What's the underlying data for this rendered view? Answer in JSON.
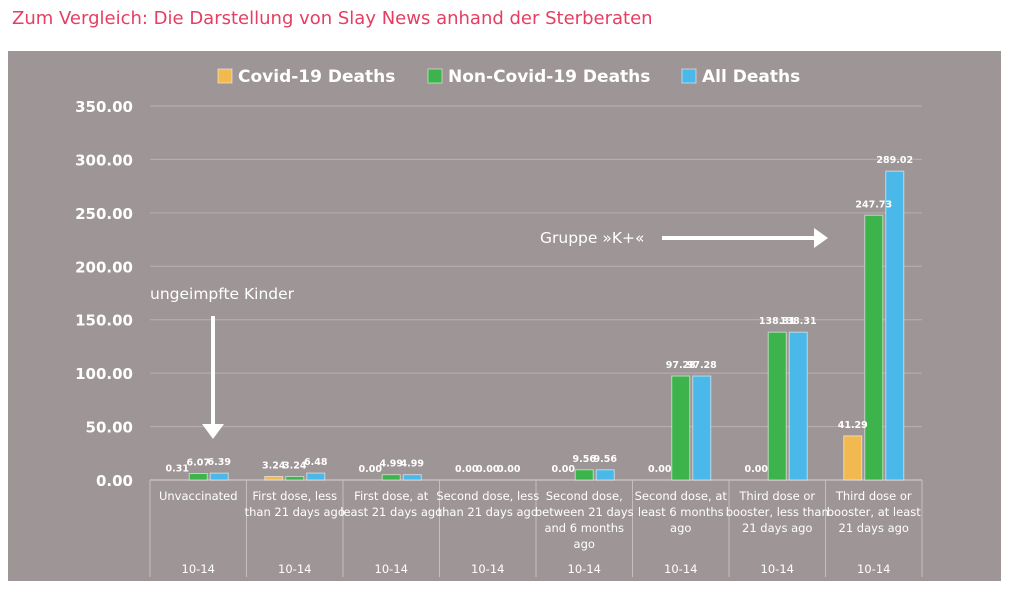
{
  "page": {
    "caption": "Zum Vergleich: Die Darstellung von Slay News anhand der Sterberaten"
  },
  "colors": {
    "caption": "#e63d62",
    "panel_bg": "#9e9696",
    "covid": "#f1b94f",
    "non_covid": "#3cb44b",
    "all": "#4ab8e8",
    "text": "#ffffff"
  },
  "chart_data": {
    "type": "bar",
    "title": "",
    "xlabel": "",
    "ylabel": "",
    "ylim": [
      0,
      350
    ],
    "yticks": [
      "0.00",
      "50.00",
      "100.00",
      "150.00",
      "200.00",
      "250.00",
      "300.00",
      "350.00"
    ],
    "ytick_values": [
      0,
      50,
      100,
      150,
      200,
      250,
      300,
      350
    ],
    "categories": [
      "Unvaccinated",
      "First dose, less than 21 days ago",
      "First dose, at least 21 days ago",
      "Second dose, less than 21 days ago",
      "Second dose, between 21 days and 6 months ago",
      "Second dose, at least 6 months ago",
      "Third dose or booster, less than 21 days ago",
      "Third dose or booster, at least 21 days ago"
    ],
    "category_lines": [
      [
        "Unvaccinated"
      ],
      [
        "First dose, less",
        "than 21 days ago"
      ],
      [
        "First dose, at",
        "least 21 days ago"
      ],
      [
        "Second dose, less",
        "than 21 days ago"
      ],
      [
        "Second dose,",
        "between 21 days",
        "and 6 months",
        "ago"
      ],
      [
        "Second dose, at",
        "least 6 months",
        "ago"
      ],
      [
        "Third dose or",
        "booster, less than",
        "21 days ago"
      ],
      [
        "Third dose or",
        "booster, at least",
        "21 days ago"
      ]
    ],
    "age_group": "10-14",
    "legend_position": "top-center",
    "series": [
      {
        "name": "Covid-19 Deaths",
        "color": "#f1b94f",
        "values": [
          0.31,
          3.24,
          0.0,
          0.0,
          0.0,
          0.0,
          0.0,
          41.29
        ],
        "labels": [
          "0.31",
          "3.24",
          "0.00",
          "0.00",
          "0.00",
          "0.00",
          "0.00",
          "41.29"
        ]
      },
      {
        "name": "Non-Covid-19 Deaths",
        "color": "#3cb44b",
        "values": [
          6.07,
          3.24,
          4.99,
          0.0,
          9.56,
          97.28,
          138.31,
          247.73
        ],
        "labels": [
          "6.07",
          "3.24",
          "4.99",
          "0.00",
          "9.56",
          "97.28",
          "138.31",
          "247.73"
        ]
      },
      {
        "name": "All Deaths",
        "color": "#4ab8e8",
        "values": [
          6.39,
          6.48,
          4.99,
          0.0,
          9.56,
          97.28,
          138.31,
          289.02
        ],
        "labels": [
          "6.39",
          "6.48",
          "4.99",
          "0.00",
          "9.56",
          "97.28",
          "138.31",
          "289.02"
        ]
      }
    ],
    "annotations": {
      "unvaccinated": "ungeimpfte Kinder",
      "group": "Gruppe »K+«"
    }
  }
}
